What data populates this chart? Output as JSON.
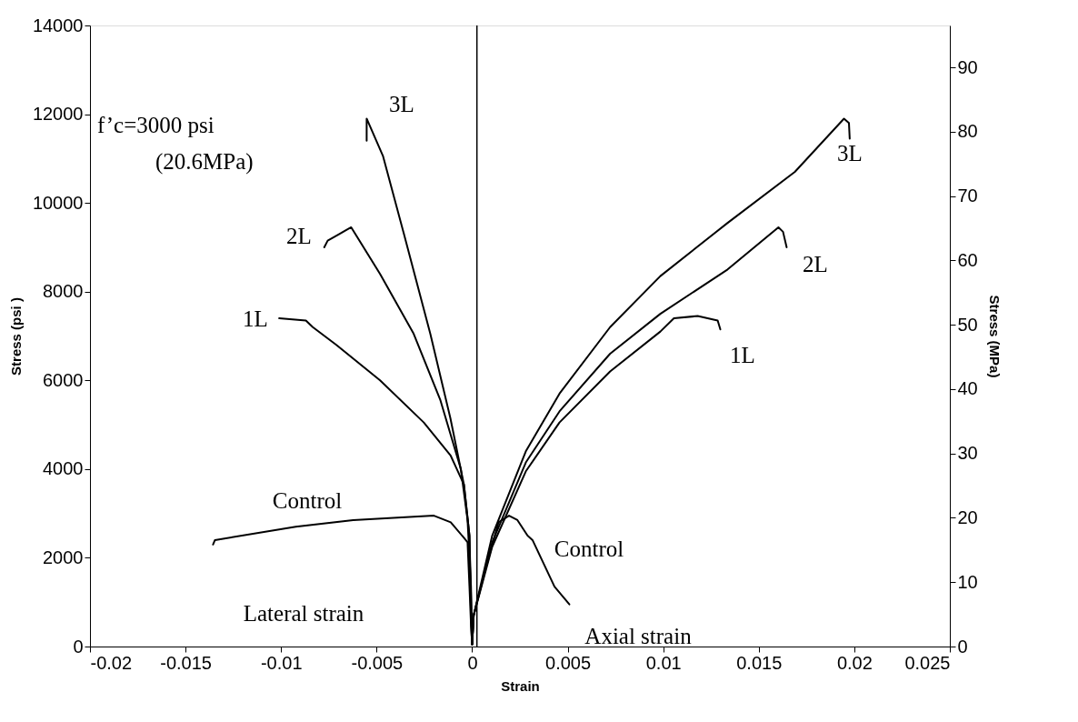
{
  "chart_data": {
    "type": "line",
    "xlabel": "Strain",
    "ylabel": "Stress (psi )",
    "y2label": "Stress (MPa)",
    "xlim": [
      -0.02,
      0.025
    ],
    "xticks": [
      -0.02,
      -0.015,
      -0.01,
      -0.005,
      0,
      0.005,
      0.01,
      0.015,
      0.02,
      0.025
    ],
    "ylim": [
      0,
      14000
    ],
    "yticks": [
      0,
      2000,
      4000,
      6000,
      8000,
      10000,
      12000,
      14000
    ],
    "y2lim": [
      0,
      96.5
    ],
    "y2ticks": [
      0,
      10,
      20,
      30,
      40,
      50,
      60,
      70,
      80,
      90
    ],
    "grid": false,
    "marker": "none",
    "line_style": "solid",
    "series": [
      {
        "color": "#000000",
        "x": [
          -0.00552,
          -0.00552,
          -0.00466,
          -0.00357,
          -0.00219,
          -0.00114,
          -0.00043,
          -0.00014,
          -5e-05,
          0
        ],
        "values": [
          11400,
          11900,
          11050,
          9300,
          7050,
          5150,
          3650,
          2500,
          450,
          50
        ]
      },
      {
        "color": "#000000",
        "x": [
          -0.00774,
          -0.00756,
          -0.00695,
          -0.00633,
          -0.00482,
          -0.00306,
          -0.00166,
          -0.00059,
          -0.00024,
          -6e-05,
          0
        ],
        "values": [
          9000,
          9150,
          9300,
          9450,
          8400,
          7050,
          5550,
          4000,
          2850,
          1350,
          50
        ]
      },
      {
        "color": "#000000",
        "x": [
          -0.0101,
          -0.0087,
          -0.00834,
          -0.00711,
          -0.00482,
          -0.00253,
          -0.00112,
          -0.00043,
          -0.00014,
          0
        ],
        "values": [
          7400,
          7350,
          7200,
          6800,
          6000,
          5050,
          4300,
          3650,
          2500,
          50
        ]
      },
      {
        "color": "#000000",
        "x": [
          -0.01356,
          -0.01346,
          -0.00923,
          -0.00623,
          -0.002,
          -0.00112,
          -0.00043,
          -0.00024,
          -0.00014,
          -6e-05,
          0
        ],
        "values": [
          2300,
          2400,
          2700,
          2850,
          2950,
          2800,
          2450,
          2350,
          1350,
          500,
          50
        ]
      },
      {
        "color": "#000000",
        "x": [
          0,
          8e-05,
          0.00105,
          0.00281,
          0.00457,
          0.00722,
          0.00985,
          0.01337,
          0.01689,
          0.01946,
          0.01972,
          0.01976
        ],
        "values": [
          50,
          700,
          2500,
          4400,
          5700,
          7200,
          8350,
          9550,
          10700,
          11900,
          11800,
          11450
        ]
      },
      {
        "color": "#000000",
        "x": [
          0,
          8e-05,
          0.00105,
          0.00281,
          0.00457,
          0.00722,
          0.00985,
          0.01337,
          0.01603,
          0.01627,
          0.01646
        ],
        "values": [
          50,
          700,
          2350,
          4150,
          5300,
          6600,
          7500,
          8500,
          9450,
          9350,
          9000
        ]
      },
      {
        "color": "#000000",
        "x": [
          0,
          8e-05,
          0.00105,
          0.00281,
          0.00457,
          0.00722,
          0.00985,
          0.01056,
          0.0118,
          0.01285,
          0.01299
        ],
        "values": [
          50,
          700,
          2250,
          3950,
          5050,
          6200,
          7100,
          7400,
          7450,
          7350,
          7150
        ]
      },
      {
        "color": "#000000",
        "x": [
          0,
          8e-05,
          0.0007,
          0.00138,
          0.00193,
          0.00237,
          0.0029,
          0.00316,
          0.00431,
          0.00509
        ],
        "values": [
          50,
          700,
          1750,
          2800,
          2950,
          2850,
          2500,
          2400,
          1350,
          950
        ]
      }
    ],
    "ref_lines": [
      {
        "axis": "x",
        "value": 0.00025,
        "color": "#000000"
      }
    ],
    "annotations": [
      "3L",
      "2L",
      "1L",
      "Control",
      "3L",
      "2L",
      "1L",
      "Control",
      "f’c=3000 psi\n(20.6MPa)",
      "Lateral strain",
      "Axial strain"
    ]
  }
}
